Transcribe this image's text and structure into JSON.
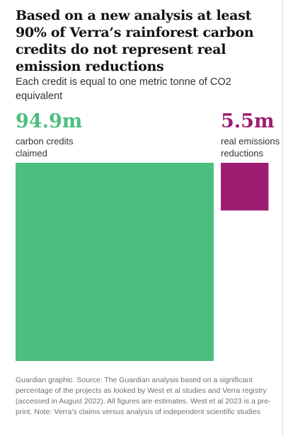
{
  "headline": "Based on a new analysis at least 90% of Verra’s rainforest carbon credits do not represent real emission reductions",
  "standfirst": "Each credit is equal to one metric tonne of CO2 equivalent",
  "footer": "Guardian graphic. Source: The Guardian analysis based on a significant percentage of the projects as looked by West et al studies and Verra registry (accessed in August 2022). All figures are estimates. West et al 2023 is a pre-print. Note: Verra’s claims versus analysis of independent scientific studies",
  "chart_data": {
    "type": "proportional-area",
    "unit": "m",
    "title": "",
    "xlabel": "",
    "ylabel": "",
    "items": [
      {
        "display": "94.9m",
        "label": "carbon credits claimed",
        "value": 94.9,
        "color": "#4cbf7f"
      },
      {
        "display": "5.5m",
        "label": "real emissions reductions",
        "value": 5.5,
        "color": "#9c1d72"
      }
    ]
  }
}
